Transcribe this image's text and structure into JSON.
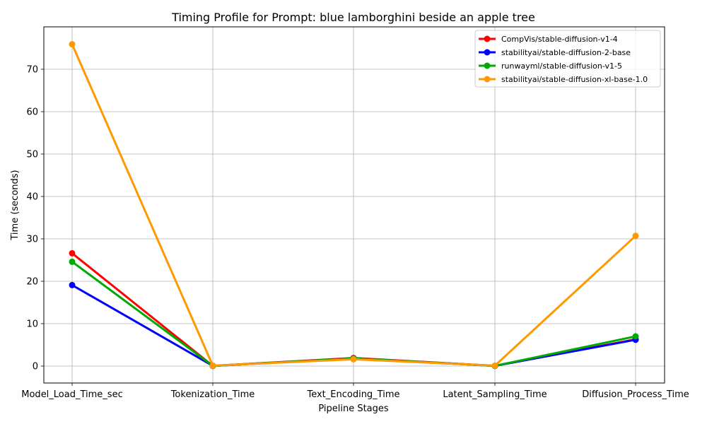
{
  "chart_data": {
    "type": "line",
    "title": "Timing Profile for Prompt: blue lamborghini beside an apple tree",
    "xlabel": "Pipeline Stages",
    "ylabel": "Time (seconds)",
    "categories": [
      "Model_Load_Time_sec",
      "Tokenization_Time",
      "Text_Encoding_Time",
      "Latent_Sampling_Time",
      "Diffusion_Process_Time"
    ],
    "yticks": [
      0,
      10,
      20,
      30,
      40,
      50,
      60,
      70
    ],
    "ylim": [
      -4,
      80
    ],
    "grid": true,
    "legend_position": "top-right",
    "series": [
      {
        "name": "CompVis/stable-diffusion-v1-4",
        "color": "#ff0000",
        "values": [
          26.6,
          0.05,
          1.9,
          0.05,
          6.3
        ]
      },
      {
        "name": "stabilityai/stable-diffusion-2-base",
        "color": "#0000ff",
        "values": [
          19.1,
          0.05,
          1.8,
          0.05,
          6.2
        ]
      },
      {
        "name": "runwayml/stable-diffusion-v1-5",
        "color": "#00aa00",
        "values": [
          24.6,
          0.05,
          1.8,
          0.05,
          7.0
        ]
      },
      {
        "name": "stabilityai/stable-diffusion-xl-base-1.0",
        "color": "#ff9900",
        "values": [
          75.9,
          0.1,
          1.6,
          0.1,
          30.7
        ]
      }
    ]
  }
}
